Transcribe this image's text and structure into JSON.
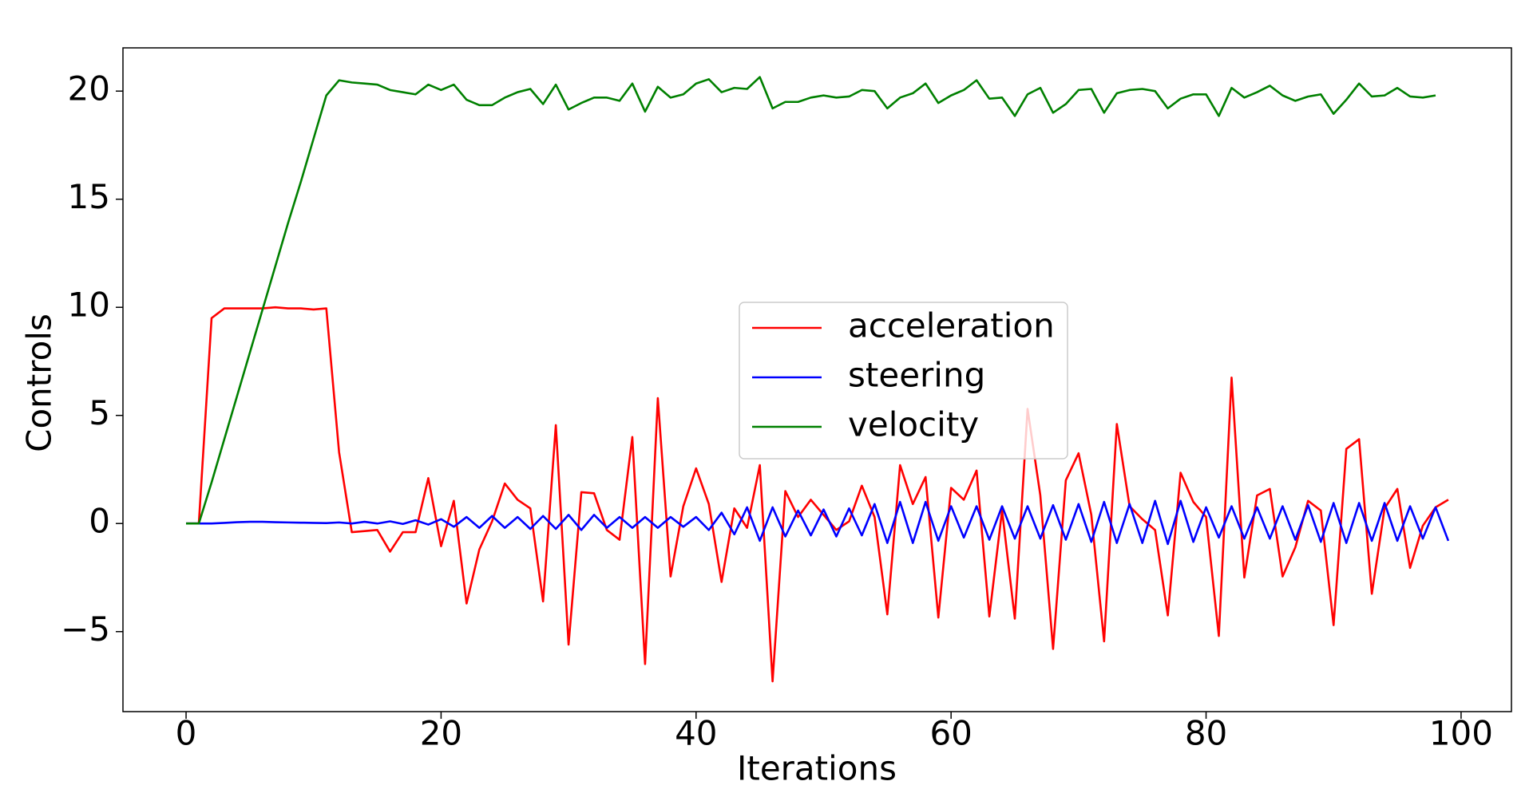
{
  "chart_data": {
    "type": "line",
    "xlabel": "Iterations",
    "ylabel": "Controls",
    "x": [
      0,
      1,
      2,
      3,
      4,
      5,
      6,
      7,
      8,
      9,
      10,
      11,
      12,
      13,
      14,
      15,
      16,
      17,
      18,
      19,
      20,
      21,
      22,
      23,
      24,
      25,
      26,
      27,
      28,
      29,
      30,
      31,
      32,
      33,
      34,
      35,
      36,
      37,
      38,
      39,
      40,
      41,
      42,
      43,
      44,
      45,
      46,
      47,
      48,
      49,
      50,
      51,
      52,
      53,
      54,
      55,
      56,
      57,
      58,
      59,
      60,
      61,
      62,
      63,
      64,
      65,
      66,
      67,
      68,
      69,
      70,
      71,
      72,
      73,
      74,
      75,
      76,
      77,
      78,
      79,
      80,
      81,
      82,
      83,
      84,
      85,
      86,
      87,
      88,
      89,
      90,
      91,
      92,
      93,
      94,
      95,
      96,
      97,
      98,
      99
    ],
    "series": [
      {
        "name": "acceleration",
        "color": "#ff0000",
        "values": [
          0,
          0,
          9.5,
          9.95,
          9.95,
          9.95,
          9.95,
          10.0,
          9.95,
          9.95,
          9.9,
          9.95,
          3.3,
          -0.4,
          -0.35,
          -0.3,
          -1.3,
          -0.4,
          -0.4,
          2.1,
          -1.05,
          1.05,
          -3.7,
          -1.2,
          0.1,
          1.85,
          1.1,
          0.7,
          -3.6,
          4.55,
          -5.6,
          1.45,
          1.4,
          -0.3,
          -0.75,
          4.0,
          -6.5,
          5.8,
          -2.45,
          0.8,
          2.55,
          0.9,
          -2.7,
          0.7,
          -0.2,
          2.7,
          -7.3,
          1.5,
          0.3,
          1.1,
          0.4,
          -0.3,
          0.1,
          1.75,
          0.3,
          -4.2,
          2.7,
          0.9,
          2.15,
          -4.35,
          1.65,
          1.1,
          2.45,
          -4.3,
          0.6,
          -4.4,
          5.3,
          1.3,
          -5.8,
          2.0,
          3.25,
          0.4,
          -5.45,
          4.6,
          0.8,
          0.2,
          -0.3,
          -4.25,
          2.35,
          1.0,
          0.3,
          -5.2,
          6.75,
          -2.5,
          1.3,
          1.6,
          -2.45,
          -1.1,
          1.05,
          0.6,
          -4.7,
          3.45,
          3.9,
          -3.25,
          0.7,
          1.6,
          -2.05,
          -0.1,
          0.75,
          1.1
        ]
      },
      {
        "name": "steering",
        "color": "#0000ff",
        "values": [
          0,
          0,
          0,
          0.03,
          0.06,
          0.08,
          0.08,
          0.06,
          0.05,
          0.04,
          0.03,
          0.02,
          0.05,
          0,
          0.08,
          0,
          0.1,
          -0.02,
          0.15,
          -0.05,
          0.2,
          -0.15,
          0.3,
          -0.2,
          0.35,
          -0.2,
          0.3,
          -0.25,
          0.35,
          -0.25,
          0.4,
          -0.3,
          0.4,
          -0.2,
          0.3,
          -0.2,
          0.3,
          -0.2,
          0.3,
          -0.15,
          0.3,
          -0.3,
          0.5,
          -0.5,
          0.75,
          -0.8,
          0.75,
          -0.6,
          0.6,
          -0.55,
          0.65,
          -0.6,
          0.7,
          -0.55,
          0.9,
          -0.9,
          1.0,
          -0.9,
          1.0,
          -0.8,
          0.8,
          -0.65,
          0.8,
          -0.75,
          0.8,
          -0.7,
          0.8,
          -0.7,
          0.85,
          -0.75,
          0.9,
          -0.85,
          1.0,
          -0.9,
          0.9,
          -0.9,
          1.05,
          -0.95,
          1.05,
          -0.85,
          0.75,
          -0.65,
          0.8,
          -0.7,
          0.75,
          -0.7,
          0.8,
          -0.75,
          0.85,
          -0.85,
          0.95,
          -0.9,
          0.95,
          -0.8,
          0.95,
          -0.8,
          0.8,
          -0.7,
          0.75,
          -0.8
        ]
      },
      {
        "name": "velocity",
        "color": "#008000",
        "values": [
          0,
          0,
          1.9,
          3.9,
          5.9,
          7.9,
          9.9,
          11.9,
          13.9,
          15.8,
          17.8,
          19.8,
          20.5,
          20.4,
          20.35,
          20.3,
          20.05,
          19.95,
          19.85,
          20.3,
          20.05,
          20.3,
          19.6,
          19.35,
          19.35,
          19.7,
          19.95,
          20.1,
          19.4,
          20.3,
          19.15,
          19.45,
          19.7,
          19.7,
          19.55,
          20.35,
          19.05,
          20.2,
          19.7,
          19.85,
          20.35,
          20.55,
          19.95,
          20.15,
          20.1,
          20.65,
          19.2,
          19.5,
          19.5,
          19.7,
          19.8,
          19.7,
          19.75,
          20.05,
          20.0,
          19.2,
          19.7,
          19.9,
          20.35,
          19.45,
          19.8,
          20.05,
          20.5,
          19.65,
          19.7,
          18.85,
          19.85,
          20.15,
          19.0,
          19.4,
          20.05,
          20.1,
          19.0,
          19.9,
          20.05,
          20.1,
          20.0,
          19.2,
          19.65,
          19.85,
          19.85,
          18.85,
          20.15,
          19.7,
          19.95,
          20.25,
          19.8,
          19.55,
          19.75,
          19.85,
          18.95,
          19.6,
          20.35,
          19.75,
          19.8,
          20.15,
          19.75,
          19.7,
          19.8,
          null
        ]
      }
    ],
    "xlim": [
      -4.95,
      103.95
    ],
    "ylim": [
      -8.7,
      22.0
    ],
    "xticks": [
      0,
      20,
      40,
      60,
      80,
      100
    ],
    "yticks": [
      {
        "value": -5,
        "label": "−5"
      },
      0,
      5,
      10,
      15,
      20
    ],
    "legend_loc": "center",
    "grid": false
  }
}
